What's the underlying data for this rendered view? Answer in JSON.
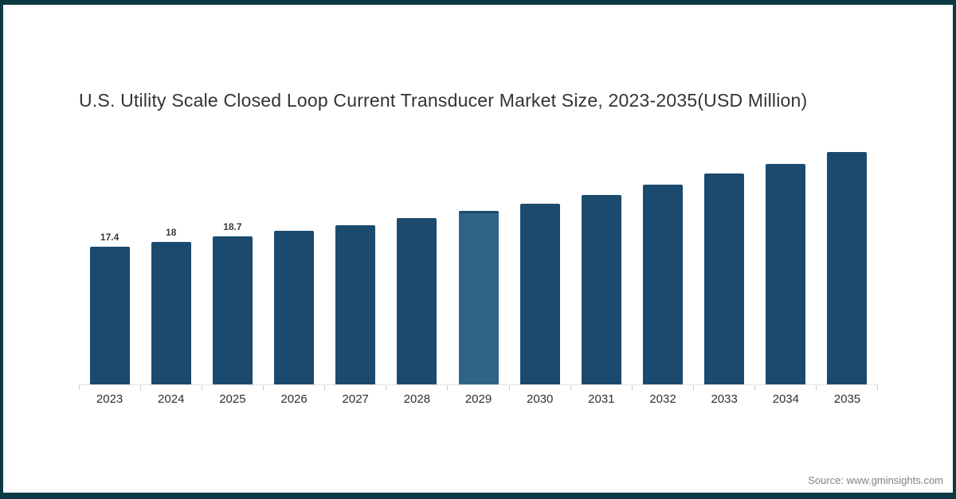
{
  "source": {
    "text": "Source: www.gminsights.com"
  },
  "colors": {
    "frame": "#0d3a42",
    "bar": "#1b4a6e",
    "bar_highlight": "#2f6488",
    "bar_highlight_cap": "#1b4a6e",
    "title_text": "#333333",
    "axis_tick": "#cccccc",
    "x_label_text": "#2f2f2f",
    "source_text": "#828282"
  },
  "chart_data": {
    "type": "bar",
    "title": "U.S. Utility Scale Closed Loop Current Transducer Market Size, 2023-2035(USD Million)",
    "categories": [
      "2023",
      "2024",
      "2025",
      "2026",
      "2027",
      "2028",
      "2029",
      "2030",
      "2031",
      "2032",
      "2033",
      "2034",
      "2035"
    ],
    "values": [
      17.4,
      18,
      18.7,
      19.4,
      20.1,
      21,
      21.9,
      22.9,
      24,
      25.3,
      26.7,
      27.9,
      29.4
    ],
    "data_labels": [
      "17.4",
      "18",
      "18.7",
      "",
      "",
      "",
      "",
      "",
      "",
      "",
      "",
      "",
      ""
    ],
    "highlighted_category": "2029",
    "xlabel": "",
    "ylabel": "",
    "ylim": [
      0,
      30
    ],
    "grid": false,
    "legend": "none"
  }
}
